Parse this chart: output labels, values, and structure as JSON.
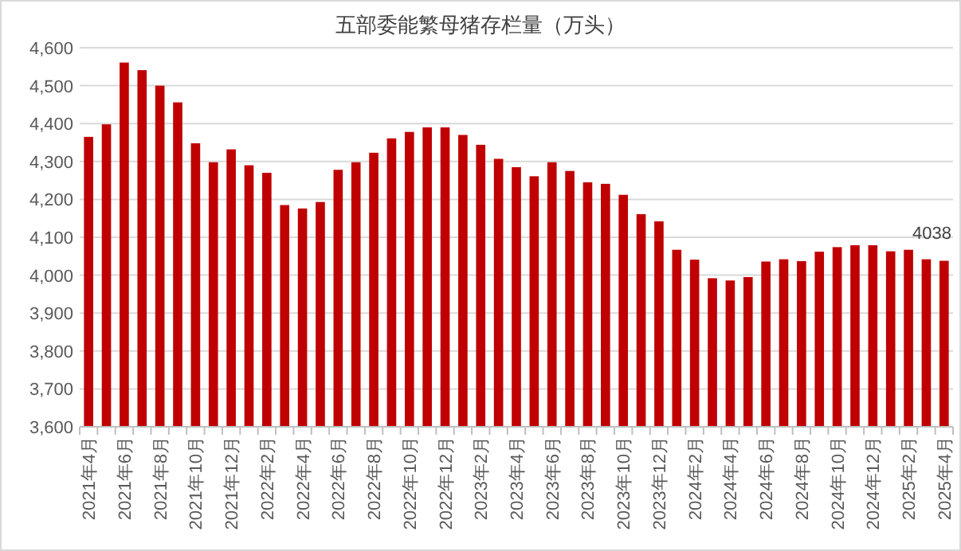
{
  "chart_data": {
    "type": "bar",
    "title": "五部委能繁母猪存栏量（万头）",
    "categories": [
      "2021年4月",
      null,
      "2021年6月",
      null,
      "2021年8月",
      null,
      "2021年10月",
      null,
      "2021年12月",
      null,
      "2022年2月",
      null,
      "2022年4月",
      null,
      "2022年6月",
      null,
      "2022年8月",
      null,
      "2022年10月",
      null,
      "2022年12月",
      null,
      "2023年2月",
      null,
      "2023年4月",
      null,
      "2023年6月",
      null,
      "2023年8月",
      null,
      "2023年10月",
      null,
      "2023年12月",
      null,
      "2024年2月",
      null,
      "2024年4月",
      null,
      "2024年6月",
      null,
      "2024年8月",
      null,
      "2024年10月",
      null,
      "2024年12月",
      null,
      "2025年2月",
      null,
      "2025年4月"
    ],
    "values": [
      4365,
      4398,
      4561,
      4541,
      4500,
      4456,
      4348,
      4298,
      4332,
      4290,
      4270,
      4185,
      4176,
      4193,
      4278,
      4298,
      4323,
      4361,
      4378,
      4390,
      4390,
      4370,
      4344,
      4307,
      4285,
      4261,
      4298,
      4275,
      4245,
      4241,
      4212,
      4161,
      4142,
      4067,
      4041,
      3992,
      3986,
      3995,
      4036,
      4042,
      4037,
      4062,
      4074,
      4079,
      4079,
      4063,
      4067,
      4042,
      4038
    ],
    "value_labels": [
      null,
      null,
      null,
      null,
      null,
      null,
      null,
      null,
      null,
      null,
      null,
      null,
      null,
      null,
      null,
      null,
      null,
      null,
      null,
      null,
      null,
      null,
      null,
      null,
      null,
      null,
      null,
      null,
      null,
      null,
      null,
      null,
      null,
      null,
      null,
      null,
      null,
      null,
      null,
      null,
      null,
      null,
      null,
      null,
      null,
      null,
      null,
      null,
      "4038"
    ],
    "color": "#c00000",
    "ylim": [
      3600,
      4600
    ],
    "yticks": [
      {
        "value": 3600,
        "label": "3,600"
      },
      {
        "value": 3700,
        "label": "3,700"
      },
      {
        "value": 3800,
        "label": "3,800"
      },
      {
        "value": 3900,
        "label": "3,900"
      },
      {
        "value": 4000,
        "label": "4,000"
      },
      {
        "value": 4100,
        "label": "4,100"
      },
      {
        "value": 4200,
        "label": "4,200"
      },
      {
        "value": 4300,
        "label": "4,300"
      },
      {
        "value": 4400,
        "label": "4,400"
      },
      {
        "value": 4500,
        "label": "4,500"
      },
      {
        "value": 4600,
        "label": "4,600"
      }
    ],
    "grid": "y"
  }
}
